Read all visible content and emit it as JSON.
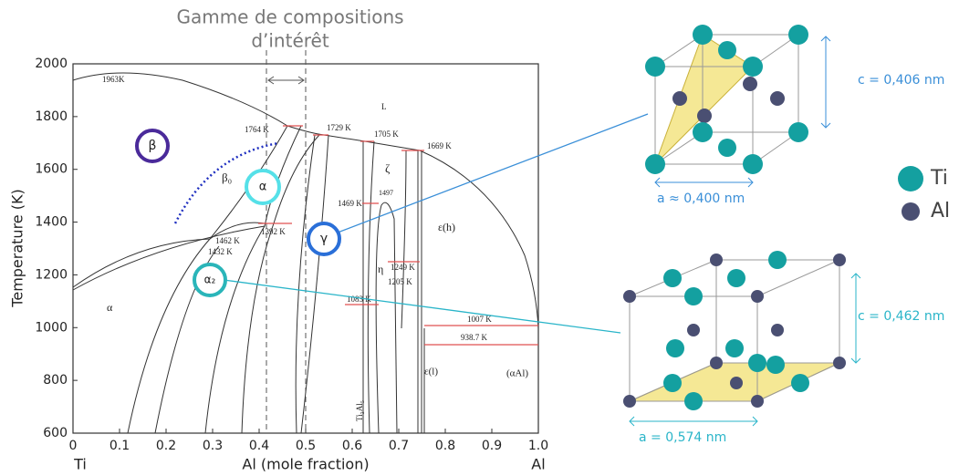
{
  "header": {
    "title_lines": [
      "Gamme de compositions",
      "d’intérêt"
    ]
  },
  "axes": {
    "y_label": "Temperature (K)",
    "x_label": "Al (mole fraction)",
    "x_left": "Ti",
    "x_right": "Al",
    "x_ticks": [
      "0",
      "0.1",
      "0.2",
      "0.3",
      "0.4",
      "0.5",
      "0.6",
      "0.7",
      "0.8",
      "0.9",
      "1.0"
    ],
    "y_ticks": [
      "2000",
      "1800",
      "1600",
      "1400",
      "1200",
      "1000",
      "800",
      "600"
    ]
  },
  "diagram_labels": [
    "1963K",
    "1764 K",
    "1729 K",
    "1705 K",
    "1669 K",
    "L",
    "β₀",
    "1462 K",
    "1432 K",
    "1392 K",
    "1469 K",
    "1497",
    "ζ",
    "ε(h)",
    "η",
    "1249 K",
    "1205 K",
    "1083 K",
    "1007 K",
    "938.7 K",
    "α",
    "ε(l)",
    "(αAl)",
    "Ti₃Al₅"
  ],
  "phase_circles": [
    "β",
    "α",
    "γ",
    "α₂"
  ],
  "structures": {
    "gamma_c": "c = 0,406 nm",
    "gamma_a": "a ≈ 0,400 nm",
    "legend_ti": "Ti",
    "legend_al": "Al",
    "alpha2_c": "c = 0,462 nm",
    "alpha2_a": "a = 0,574 nm"
  }
}
